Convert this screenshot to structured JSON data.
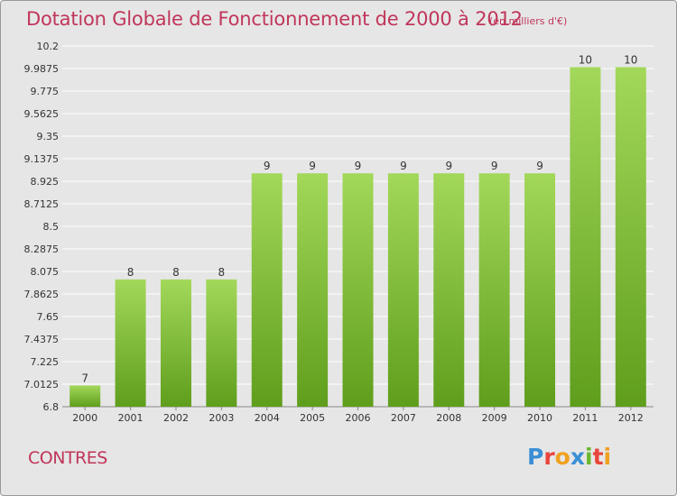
{
  "page": {
    "place": "CONTRES",
    "logo_text": "Proxiti",
    "logo_colors": [
      "#3a8fd6",
      "#e8453c",
      "#f0a020",
      "#3a8fd6",
      "#6ab82e",
      "#e8453c",
      "#f0a020"
    ]
  },
  "chart_data": {
    "type": "bar",
    "title": "Dotation Globale de Fonctionnement de 2000 à 2012",
    "subtitle": "(en milliers d'€)",
    "categories": [
      "2000",
      "2001",
      "2002",
      "2003",
      "2004",
      "2005",
      "2006",
      "2007",
      "2008",
      "2009",
      "2010",
      "2011",
      "2012"
    ],
    "values": [
      7,
      8,
      8,
      8,
      9,
      9,
      9,
      9,
      9,
      9,
      9,
      10,
      10
    ],
    "data_labels": [
      "7",
      "8",
      "8",
      "8",
      "9",
      "9",
      "9",
      "9",
      "9",
      "9",
      "9",
      "10",
      "10"
    ],
    "ylim": [
      6.8,
      10.2
    ],
    "yticks": [
      "6.8",
      "7.0125",
      "7.225",
      "7.4375",
      "7.65",
      "7.8625",
      "8.075",
      "8.2875",
      "8.5",
      "8.7125",
      "8.925",
      "9.1375",
      "9.35",
      "9.5625",
      "9.775",
      "9.9875",
      "10.2"
    ],
    "grid": true,
    "bar_color": "#7cc034",
    "bar_color_light": "#a3d85a",
    "bar_color_dark": "#5f9e1c",
    "grid_color": "#ffffff",
    "text_color": "#333333"
  }
}
